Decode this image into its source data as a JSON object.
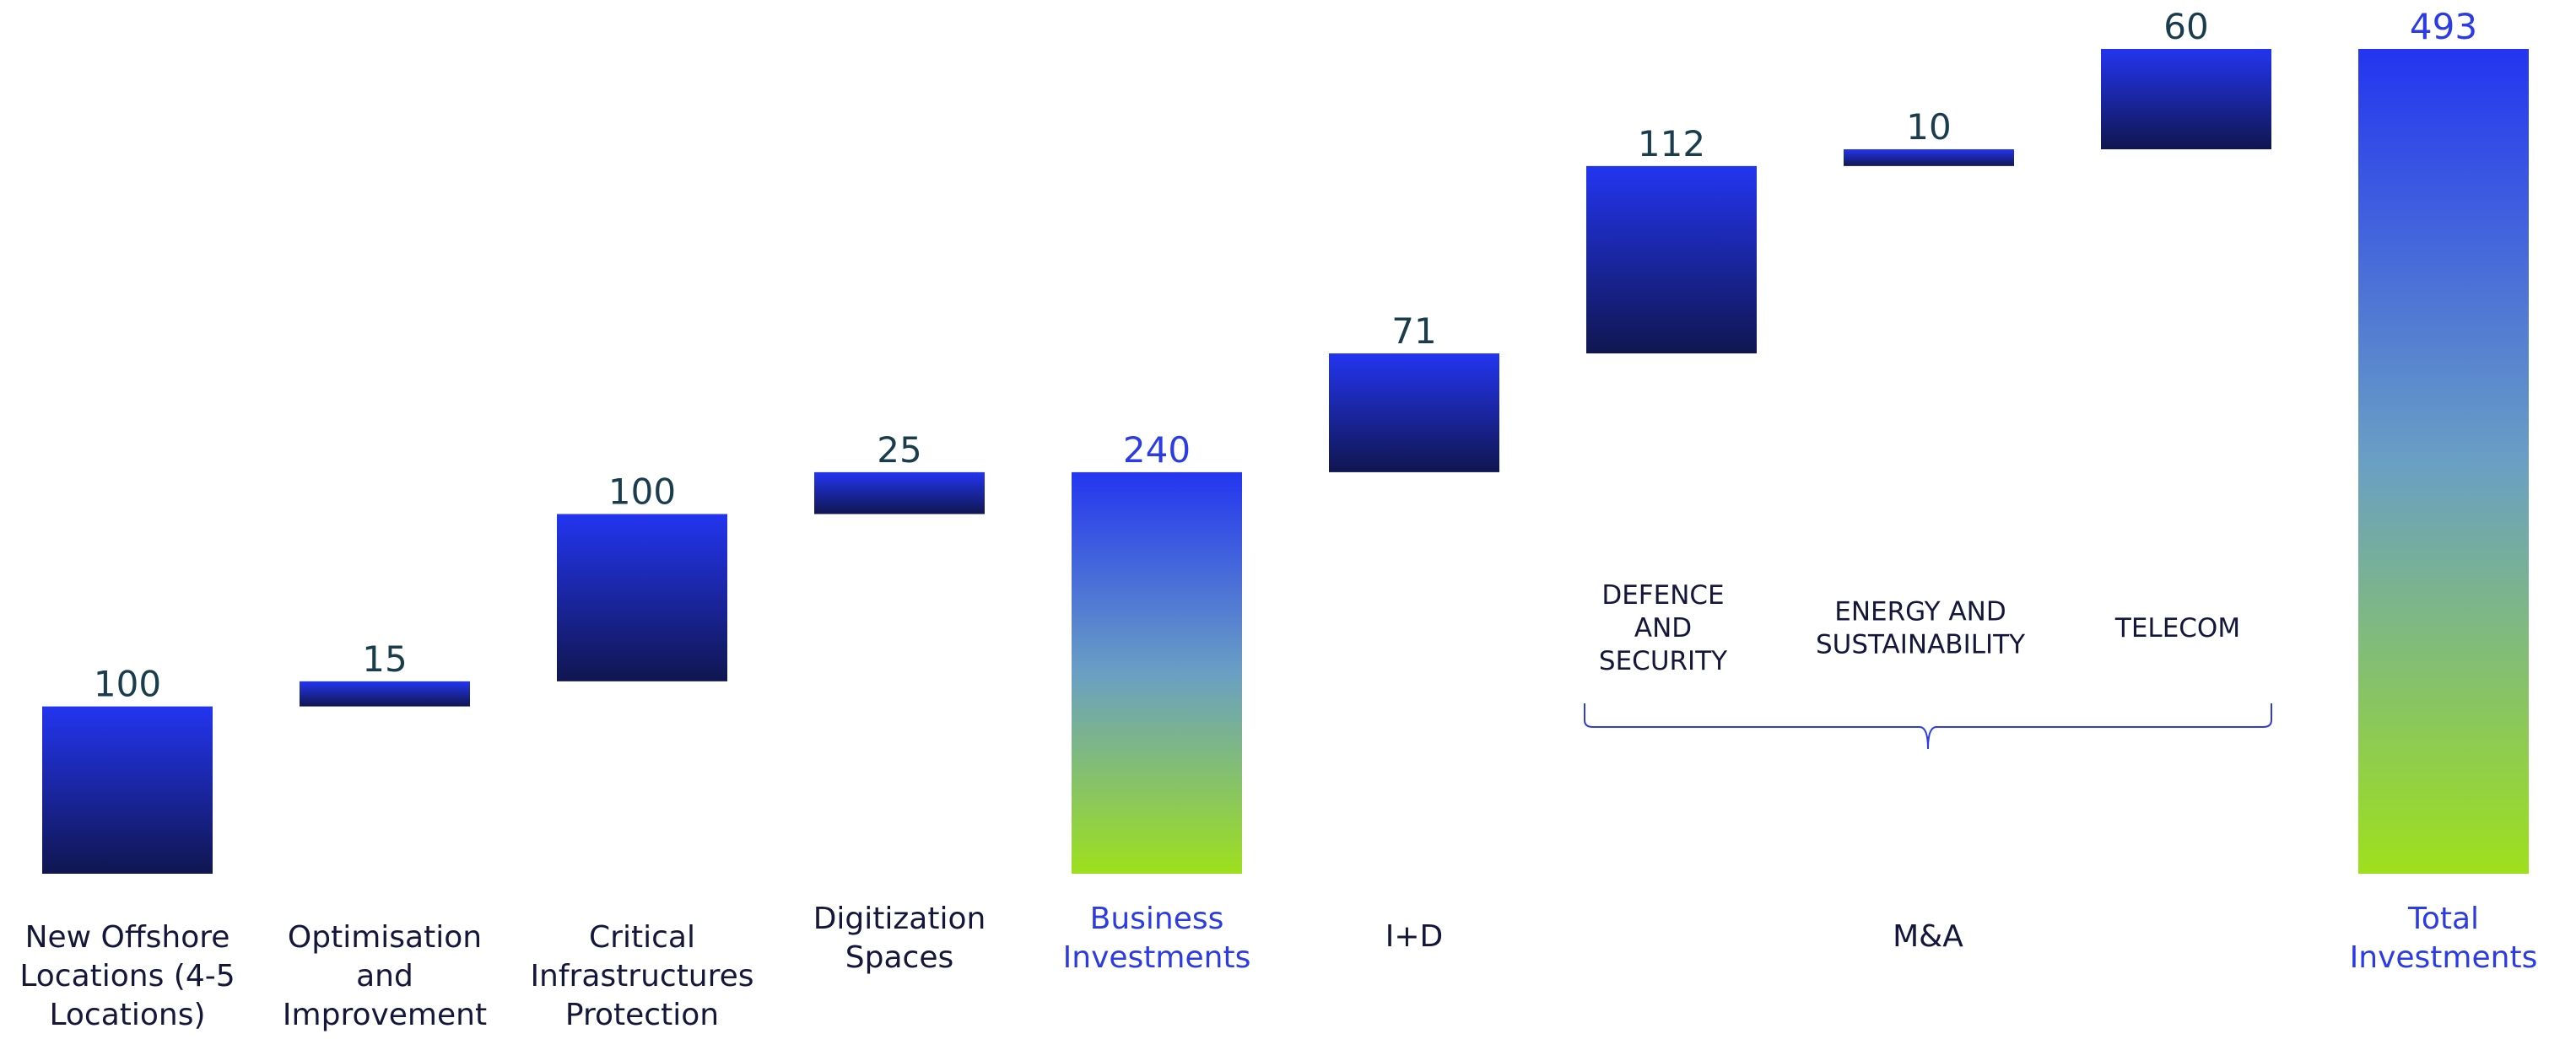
{
  "chart_data": {
    "type": "bar",
    "subtype": "waterfall",
    "title": "",
    "xlabel": "",
    "ylabel": "",
    "ylim": [
      0,
      493
    ],
    "grid": false,
    "legend": "none",
    "categories": [
      "New Offshore Locations (4-5 Locations)",
      "Optimisation and Improvement",
      "Critical Infrastructures Protection",
      "Digitization Spaces",
      "Business Investments",
      "I+D",
      "DEFENCE AND SECURITY",
      "ENERGY AND SUSTAINABILITY",
      "TELECOM",
      "Total Investments"
    ],
    "category_labels": [
      [
        "New Offshore",
        "Locations (4-5",
        "Locations)"
      ],
      [
        "Optimisation",
        "and",
        "Improvement"
      ],
      [
        "Critical",
        "Infrastructures",
        "Protection"
      ],
      [
        "Digitization",
        "Spaces"
      ],
      [
        "Business",
        "Investments"
      ],
      [
        "I+D"
      ],
      [
        "DEFENCE",
        "AND",
        "SECURITY"
      ],
      [
        "ENERGY AND",
        "SUSTAINABILITY"
      ],
      [
        "TELECOM"
      ],
      [
        "Total",
        "Investments"
      ]
    ],
    "values": [
      100,
      15,
      100,
      25,
      240,
      71,
      112,
      10,
      60,
      493
    ],
    "value_labels": [
      "100",
      "15",
      "100",
      "25",
      "240",
      "71",
      "112",
      "10",
      "60",
      "493"
    ],
    "bar_kind": [
      "delta",
      "delta",
      "delta",
      "delta",
      "total",
      "delta",
      "delta",
      "delta",
      "delta",
      "total"
    ],
    "group_label": "M&A",
    "group_members": [
      6,
      7,
      8
    ],
    "colors": {
      "delta_top": "#2335f0",
      "delta_bottom": "#101650",
      "total_top": "#2335f0",
      "total_mid": "#6a9fc4",
      "total_bottom": "#9ee01c",
      "accent_text": "#2b3be6",
      "value_text": "#1a3d4d",
      "label_text": "#14163a",
      "bracket": "#2b3be6"
    }
  }
}
